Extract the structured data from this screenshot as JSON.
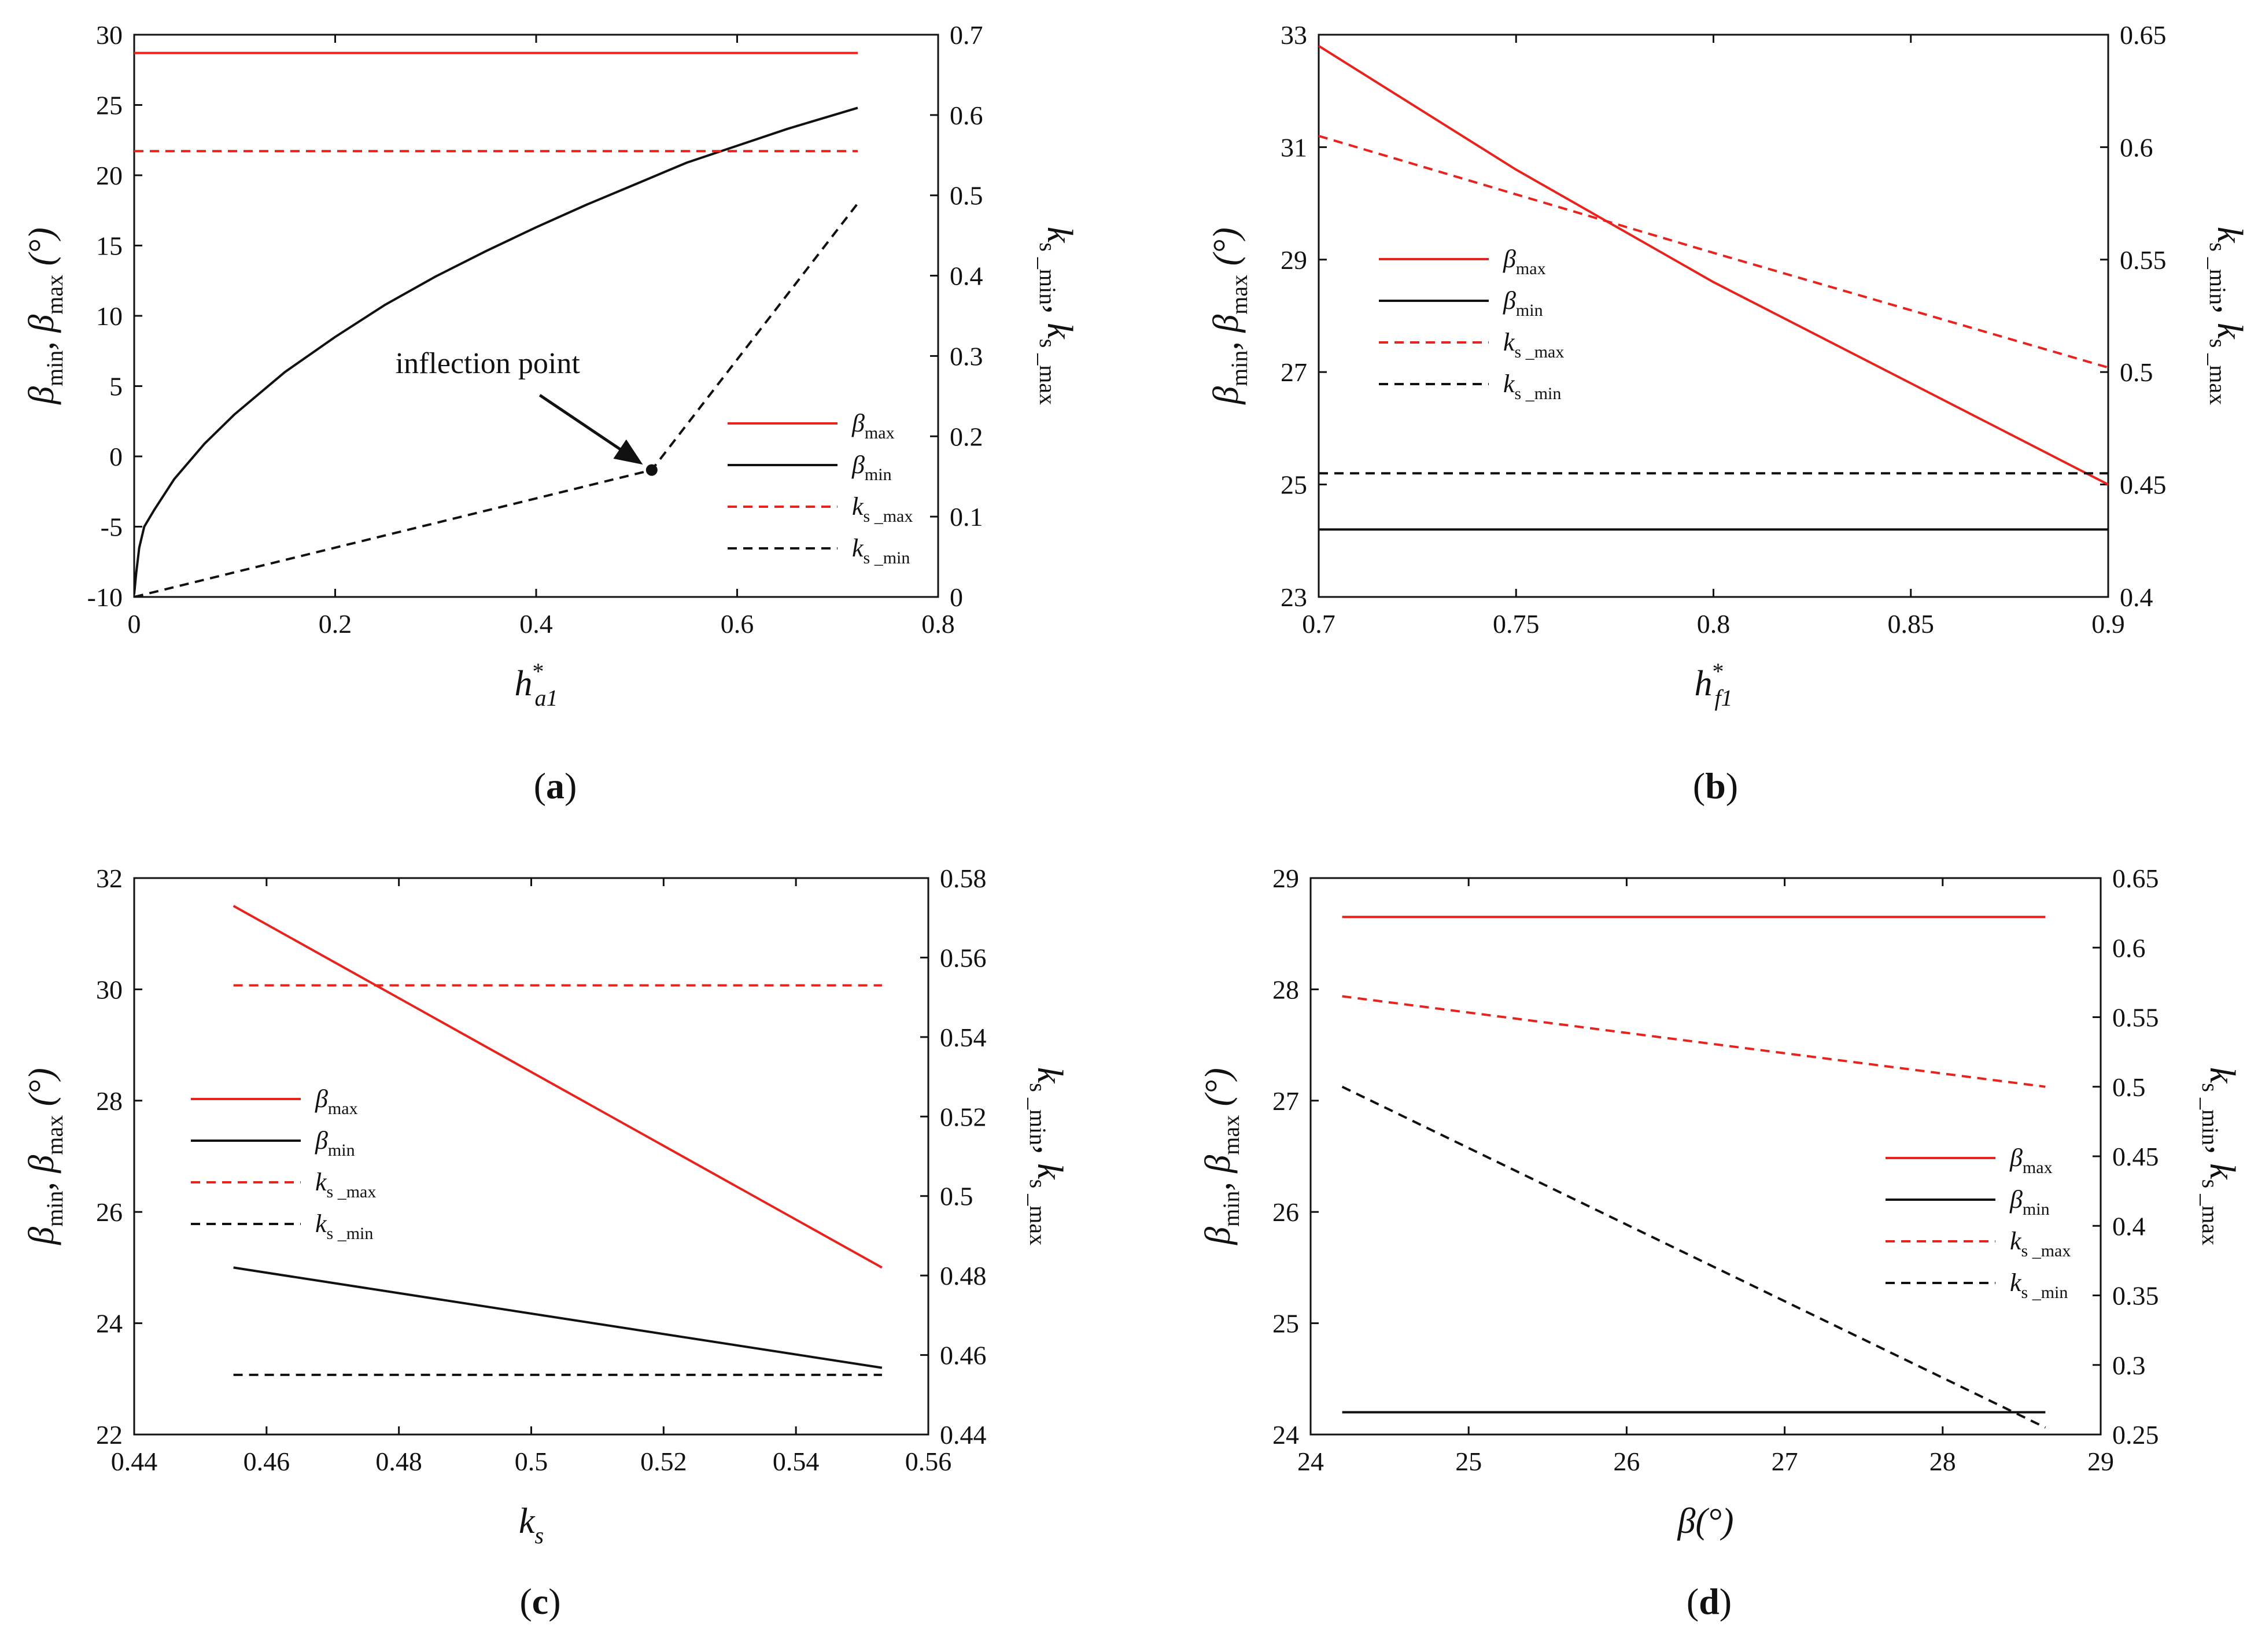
{
  "chart_data": [
    {
      "type": "line",
      "caption": {
        "open": "(",
        "letter": "a",
        "close": ")"
      },
      "xlabel": {
        "main": "h",
        "sup": "*",
        "sub": "a1"
      },
      "ylabel_left": {
        "b1": "β",
        "s1": "min",
        "sep": ", ",
        "b2": "β",
        "s2": "max",
        "unit": " (°)"
      },
      "ylabel_right": {
        "k1": "k",
        "s1": "s _min",
        "sep": ", ",
        "k2": "k",
        "s2": "s _max"
      },
      "xlim": [
        0,
        0.8
      ],
      "ylim_left": [
        -10,
        30
      ],
      "ylim_right": [
        0,
        0.7
      ],
      "xticks": [
        "0",
        "0.2",
        "0.4",
        "0.6",
        "0.8"
      ],
      "yticks_left": [
        "-10",
        "-5",
        "0",
        "5",
        "10",
        "15",
        "20",
        "25",
        "30"
      ],
      "yticks_right": [
        "0",
        "0.1",
        "0.2",
        "0.3",
        "0.4",
        "0.5",
        "0.6",
        "0.7"
      ],
      "series": [
        {
          "key": "bmax",
          "name_main": "β",
          "name_sub": "max",
          "axis": "left",
          "color": "#e8231e",
          "dash": false,
          "x": [
            0,
            0.72
          ],
          "y": [
            28.7,
            28.7
          ]
        },
        {
          "key": "bmin",
          "name_main": "β",
          "name_sub": "min",
          "axis": "left",
          "color": "#111111",
          "dash": false,
          "x": [
            0,
            0.002,
            0.005,
            0.01,
            0.02,
            0.04,
            0.07,
            0.1,
            0.15,
            0.2,
            0.25,
            0.3,
            0.35,
            0.4,
            0.45,
            0.5,
            0.55,
            0.6,
            0.65,
            0.72
          ],
          "y": [
            -9.8,
            -8.3,
            -6.5,
            -5.0,
            -3.8,
            -1.6,
            0.9,
            3.0,
            6.0,
            8.5,
            10.8,
            12.8,
            14.6,
            16.3,
            17.9,
            19.4,
            20.9,
            22.1,
            23.3,
            24.8
          ]
        },
        {
          "key": "ksmax",
          "name_main": "k",
          "name_sub": "s _max",
          "axis": "right",
          "color": "#e8231e",
          "dash": true,
          "x": [
            0,
            0.72
          ],
          "y": [
            0.555,
            0.555
          ]
        },
        {
          "key": "ksmin",
          "name_main": "k",
          "name_sub": "s _min",
          "axis": "right",
          "color": "#111111",
          "dash": true,
          "x": [
            0,
            0.515,
            0.72
          ],
          "y": [
            0.0,
            0.158,
            0.49
          ]
        }
      ],
      "legend_position": "lower-right",
      "annotation": {
        "text": "inflection point",
        "x": 0.515,
        "y_right": 0.158,
        "text_x": 0.3,
        "text_y_left": 6.0
      }
    },
    {
      "type": "line",
      "caption": {
        "open": "(",
        "letter": "b",
        "close": ")"
      },
      "xlabel": {
        "main": "h",
        "sup": "*",
        "sub": "f1"
      },
      "ylabel_left": {
        "b1": "β",
        "s1": "min",
        "sep": ", ",
        "b2": "β",
        "s2": "max",
        "unit": " (°)"
      },
      "ylabel_right": {
        "k1": "k",
        "s1": "s _min",
        "sep": ", ",
        "k2": "k",
        "s2": "s _max"
      },
      "xlim": [
        0.7,
        0.9
      ],
      "ylim_left": [
        23,
        33
      ],
      "ylim_right": [
        0.4,
        0.65
      ],
      "xticks": [
        "0.7",
        "0.75",
        "0.8",
        "0.85",
        "0.9"
      ],
      "yticks_left": [
        "23",
        "25",
        "27",
        "29",
        "31",
        "33"
      ],
      "yticks_right": [
        "0.4",
        "0.45",
        "0.5",
        "0.55",
        "0.6",
        "0.65"
      ],
      "series": [
        {
          "key": "bmax",
          "name_main": "β",
          "name_sub": "max",
          "axis": "left",
          "color": "#e8231e",
          "dash": false,
          "x": [
            0.7,
            0.75,
            0.8,
            0.85,
            0.9
          ],
          "y": [
            32.8,
            30.6,
            28.6,
            26.8,
            25.0
          ]
        },
        {
          "key": "bmin",
          "name_main": "β",
          "name_sub": "min",
          "axis": "left",
          "color": "#111111",
          "dash": false,
          "x": [
            0.7,
            0.9
          ],
          "y": [
            24.2,
            24.2
          ]
        },
        {
          "key": "ksmax",
          "name_main": "k",
          "name_sub": "s _max",
          "axis": "right",
          "color": "#e8231e",
          "dash": true,
          "x": [
            0.7,
            0.8,
            0.9
          ],
          "y": [
            0.605,
            0.553,
            0.502
          ]
        },
        {
          "key": "ksmin",
          "name_main": "k",
          "name_sub": "s _min",
          "axis": "right",
          "color": "#111111",
          "dash": true,
          "x": [
            0.7,
            0.9
          ],
          "y": [
            0.455,
            0.455
          ]
        }
      ],
      "legend_position": "middle-left"
    },
    {
      "type": "line",
      "caption": {
        "open": "(",
        "letter": "c",
        "close": ")"
      },
      "xlabel": {
        "main": "k",
        "sup": "",
        "sub": "s"
      },
      "ylabel_left": {
        "b1": "β",
        "s1": "min",
        "sep": ", ",
        "b2": "β",
        "s2": "max",
        "unit": " (°)"
      },
      "ylabel_right": {
        "k1": "k",
        "s1": "s _min",
        "sep": ", ",
        "k2": "k",
        "s2": "s _max"
      },
      "xlim": [
        0.44,
        0.56
      ],
      "ylim_left": [
        22,
        32
      ],
      "ylim_right": [
        0.44,
        0.58
      ],
      "xticks": [
        "0.44",
        "0.46",
        "0.48",
        "0.5",
        "0.52",
        "0.54",
        "0.56"
      ],
      "yticks_left": [
        "22",
        "24",
        "26",
        "28",
        "30",
        "32"
      ],
      "yticks_right": [
        "0.44",
        "0.46",
        "0.48",
        "0.5",
        "0.52",
        "0.54",
        "0.56",
        "0.58"
      ],
      "series": [
        {
          "key": "bmax",
          "name_main": "β",
          "name_sub": "max",
          "axis": "left",
          "color": "#e8231e",
          "dash": false,
          "x": [
            0.455,
            0.553
          ],
          "y": [
            31.5,
            25.0
          ]
        },
        {
          "key": "bmin",
          "name_main": "β",
          "name_sub": "min",
          "axis": "left",
          "color": "#111111",
          "dash": false,
          "x": [
            0.455,
            0.553
          ],
          "y": [
            25.0,
            23.2
          ]
        },
        {
          "key": "ksmax",
          "name_main": "k",
          "name_sub": "s _max",
          "axis": "right",
          "color": "#e8231e",
          "dash": true,
          "x": [
            0.455,
            0.553
          ],
          "y": [
            0.553,
            0.553
          ]
        },
        {
          "key": "ksmin",
          "name_main": "k",
          "name_sub": "s _min",
          "axis": "right",
          "color": "#111111",
          "dash": true,
          "x": [
            0.455,
            0.553
          ],
          "y": [
            0.455,
            0.455
          ]
        }
      ],
      "legend_position": "middle-left"
    },
    {
      "type": "line",
      "caption": {
        "open": "(",
        "letter": "d",
        "close": ")"
      },
      "xlabel": {
        "main": "β",
        "sup": "",
        "sub": "",
        "unit": "(°)"
      },
      "ylabel_left": {
        "b1": "β",
        "s1": "min",
        "sep": ", ",
        "b2": "β",
        "s2": "max",
        "unit": " (°)"
      },
      "ylabel_right": {
        "k1": "k",
        "s1": "s _min",
        "sep": ", ",
        "k2": "k",
        "s2": "s _max"
      },
      "xlim": [
        24,
        29
      ],
      "ylim_left": [
        24,
        29
      ],
      "ylim_right": [
        0.25,
        0.65
      ],
      "xticks": [
        "24",
        "25",
        "26",
        "27",
        "28",
        "29"
      ],
      "yticks_left": [
        "24",
        "25",
        "26",
        "27",
        "28",
        "29"
      ],
      "yticks_right": [
        "0.25",
        "0.3",
        "0.35",
        "0.4",
        "0.45",
        "0.5",
        "0.55",
        "0.6",
        "0.65"
      ],
      "series": [
        {
          "key": "bmax",
          "name_main": "β",
          "name_sub": "max",
          "axis": "left",
          "color": "#e8231e",
          "dash": false,
          "x": [
            24.2,
            28.65
          ],
          "y": [
            28.65,
            28.65
          ]
        },
        {
          "key": "bmin",
          "name_main": "β",
          "name_sub": "min",
          "axis": "left",
          "color": "#111111",
          "dash": false,
          "x": [
            24.2,
            28.65
          ],
          "y": [
            24.2,
            24.2
          ]
        },
        {
          "key": "ksmax",
          "name_main": "k",
          "name_sub": "s _max",
          "axis": "right",
          "color": "#e8231e",
          "dash": true,
          "x": [
            24.2,
            28.65
          ],
          "y": [
            0.565,
            0.5
          ]
        },
        {
          "key": "ksmin",
          "name_main": "k",
          "name_sub": "s _min",
          "axis": "right",
          "color": "#111111",
          "dash": true,
          "x": [
            24.2,
            28.65
          ],
          "y": [
            0.5,
            0.255
          ]
        }
      ],
      "legend_position": "middle-right"
    }
  ]
}
